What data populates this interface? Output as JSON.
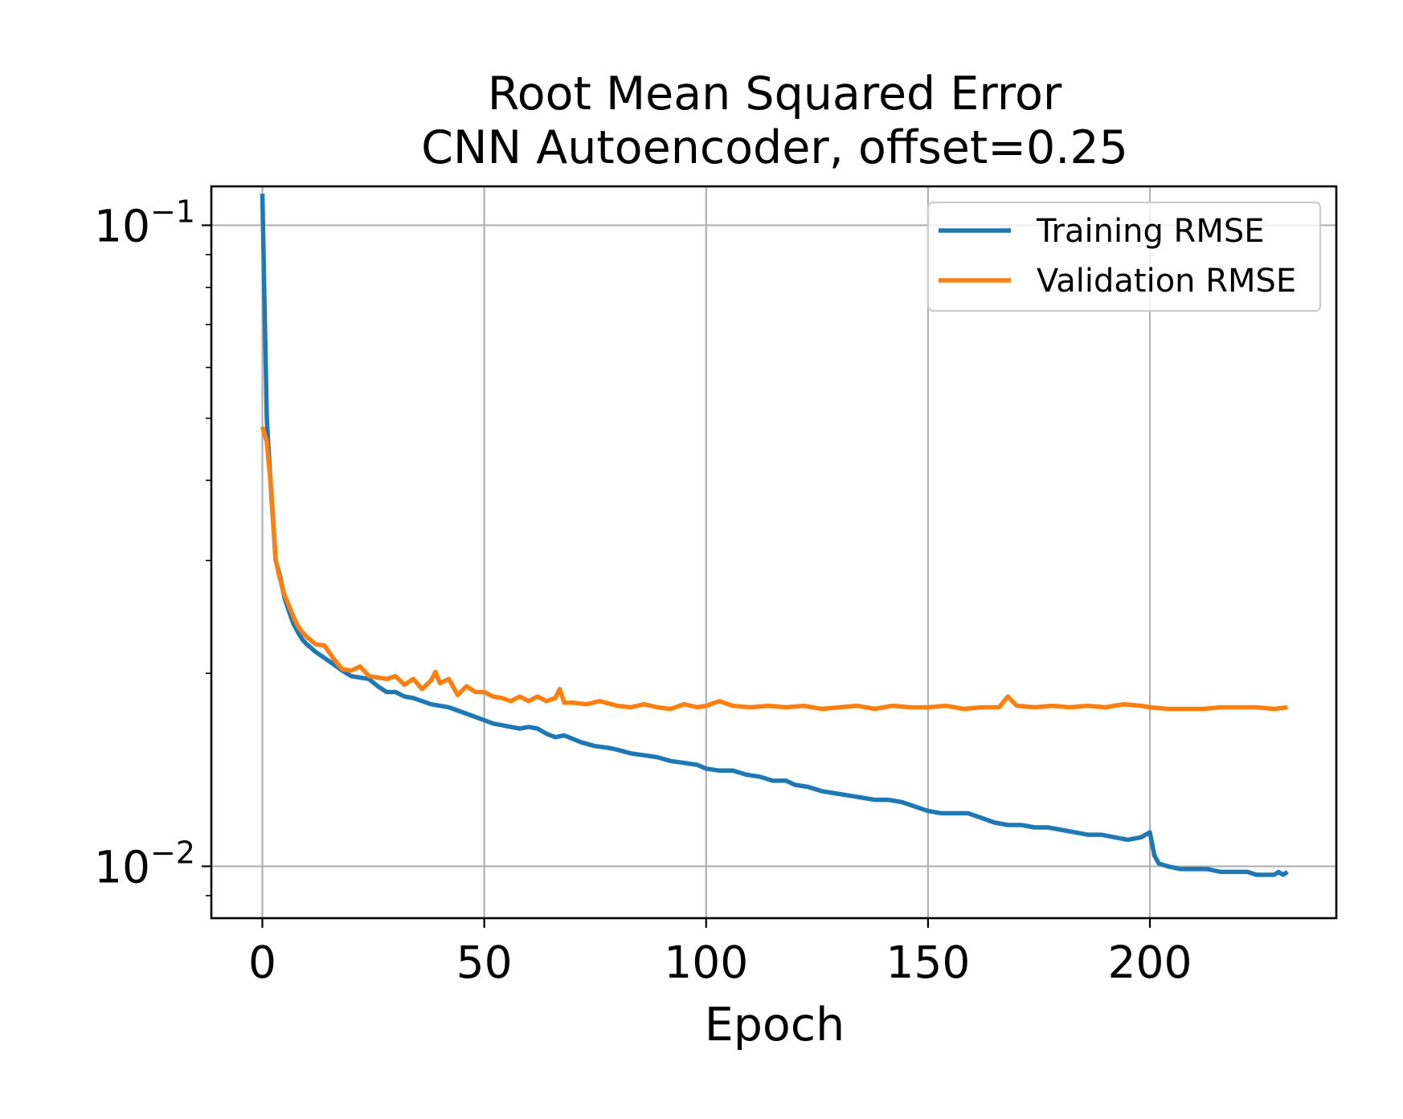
{
  "chart_data": {
    "type": "line",
    "title": "Root Mean Squared Error",
    "subtitle": "CNN Autoencoder, offset=0.25",
    "xlabel": "Epoch",
    "ylabel": "",
    "xlim": [
      -11.5,
      242
    ],
    "ylim": [
      0.0083,
      0.115
    ],
    "yscale": "log",
    "grid": true,
    "legend_position": "top-right",
    "x_ticks": [
      {
        "value": 0,
        "label": "0"
      },
      {
        "value": 50,
        "label": "50"
      },
      {
        "value": 100,
        "label": "100"
      },
      {
        "value": 150,
        "label": "150"
      },
      {
        "value": 200,
        "label": "200"
      }
    ],
    "y_ticks": [
      {
        "value": 0.1,
        "base": "10",
        "exp": "−1"
      },
      {
        "value": 0.01,
        "base": "10",
        "exp": "−2"
      }
    ],
    "series": [
      {
        "name": "Training RMSE",
        "color": "#1f77b4",
        "points": [
          [
            0,
            0.112
          ],
          [
            1,
            0.05
          ],
          [
            2,
            0.038
          ],
          [
            3,
            0.03
          ],
          [
            4,
            0.0283
          ],
          [
            5,
            0.0262
          ],
          [
            6,
            0.025
          ],
          [
            7,
            0.0239
          ],
          [
            8,
            0.0232
          ],
          [
            9,
            0.0226
          ],
          [
            10,
            0.0222
          ],
          [
            12,
            0.0216
          ],
          [
            15,
            0.0209
          ],
          [
            18,
            0.0202
          ],
          [
            20,
            0.0198
          ],
          [
            22,
            0.0197
          ],
          [
            24,
            0.0196
          ],
          [
            26,
            0.0191
          ],
          [
            28,
            0.0187
          ],
          [
            30,
            0.0187
          ],
          [
            32,
            0.0184
          ],
          [
            34,
            0.0183
          ],
          [
            36,
            0.0181
          ],
          [
            38,
            0.0179
          ],
          [
            40,
            0.0178
          ],
          [
            42,
            0.0177
          ],
          [
            44,
            0.0175
          ],
          [
            46,
            0.0173
          ],
          [
            48,
            0.0171
          ],
          [
            50,
            0.0169
          ],
          [
            52,
            0.0167
          ],
          [
            54,
            0.0166
          ],
          [
            56,
            0.0165
          ],
          [
            58,
            0.0164
          ],
          [
            60,
            0.0165
          ],
          [
            62,
            0.0164
          ],
          [
            64,
            0.0161
          ],
          [
            66,
            0.0159
          ],
          [
            68,
            0.016
          ],
          [
            70,
            0.0158
          ],
          [
            72,
            0.0156
          ],
          [
            75,
            0.0154
          ],
          [
            78,
            0.0153
          ],
          [
            80,
            0.0152
          ],
          [
            83,
            0.015
          ],
          [
            86,
            0.0149
          ],
          [
            89,
            0.0148
          ],
          [
            92,
            0.0146
          ],
          [
            95,
            0.0145
          ],
          [
            98,
            0.0144
          ],
          [
            100,
            0.0142
          ],
          [
            103,
            0.0141
          ],
          [
            106,
            0.0141
          ],
          [
            109,
            0.0139
          ],
          [
            112,
            0.0138
          ],
          [
            115,
            0.0136
          ],
          [
            118,
            0.0136
          ],
          [
            120,
            0.0134
          ],
          [
            123,
            0.0133
          ],
          [
            126,
            0.0131
          ],
          [
            129,
            0.013
          ],
          [
            132,
            0.0129
          ],
          [
            135,
            0.0128
          ],
          [
            138,
            0.0127
          ],
          [
            141,
            0.0127
          ],
          [
            144,
            0.0126
          ],
          [
            147,
            0.0124
          ],
          [
            150,
            0.0122
          ],
          [
            153,
            0.0121
          ],
          [
            156,
            0.0121
          ],
          [
            159,
            0.0121
          ],
          [
            162,
            0.0119
          ],
          [
            165,
            0.0117
          ],
          [
            168,
            0.0116
          ],
          [
            171,
            0.0116
          ],
          [
            174,
            0.0115
          ],
          [
            177,
            0.0115
          ],
          [
            180,
            0.0114
          ],
          [
            183,
            0.0113
          ],
          [
            186,
            0.0112
          ],
          [
            189,
            0.0112
          ],
          [
            192,
            0.0111
          ],
          [
            195,
            0.011
          ],
          [
            198,
            0.0111
          ],
          [
            200,
            0.0113
          ],
          [
            201,
            0.0104
          ],
          [
            202,
            0.0101
          ],
          [
            204,
            0.01
          ],
          [
            207,
            0.0099
          ],
          [
            210,
            0.0099
          ],
          [
            213,
            0.0099
          ],
          [
            216,
            0.0098
          ],
          [
            219,
            0.0098
          ],
          [
            222,
            0.0098
          ],
          [
            224,
            0.0097
          ],
          [
            226,
            0.0097
          ],
          [
            228,
            0.0097
          ],
          [
            229,
            0.0098
          ],
          [
            230,
            0.0097
          ],
          [
            231,
            0.0098
          ]
        ]
      },
      {
        "name": "Validation RMSE",
        "color": "#ff7f0e",
        "points": [
          [
            0,
            0.0485
          ],
          [
            1,
            0.046
          ],
          [
            2,
            0.0385
          ],
          [
            3,
            0.03
          ],
          [
            4,
            0.028
          ],
          [
            5,
            0.0265
          ],
          [
            6,
            0.0255
          ],
          [
            7,
            0.0245
          ],
          [
            8,
            0.0237
          ],
          [
            9,
            0.0232
          ],
          [
            10,
            0.0228
          ],
          [
            12,
            0.0222
          ],
          [
            14,
            0.0221
          ],
          [
            16,
            0.0211
          ],
          [
            18,
            0.0203
          ],
          [
            20,
            0.0202
          ],
          [
            22,
            0.0205
          ],
          [
            24,
            0.0198
          ],
          [
            26,
            0.0197
          ],
          [
            28,
            0.0196
          ],
          [
            30,
            0.0198
          ],
          [
            32,
            0.0192
          ],
          [
            34,
            0.0196
          ],
          [
            36,
            0.0189
          ],
          [
            38,
            0.0195
          ],
          [
            39,
            0.0201
          ],
          [
            40,
            0.0193
          ],
          [
            42,
            0.0196
          ],
          [
            44,
            0.0185
          ],
          [
            46,
            0.0191
          ],
          [
            48,
            0.0187
          ],
          [
            50,
            0.0187
          ],
          [
            52,
            0.0184
          ],
          [
            54,
            0.0183
          ],
          [
            56,
            0.0181
          ],
          [
            58,
            0.0184
          ],
          [
            60,
            0.0181
          ],
          [
            62,
            0.0184
          ],
          [
            64,
            0.0181
          ],
          [
            66,
            0.0183
          ],
          [
            67,
            0.0189
          ],
          [
            68,
            0.018
          ],
          [
            70,
            0.018
          ],
          [
            73,
            0.0179
          ],
          [
            76,
            0.0181
          ],
          [
            80,
            0.0178
          ],
          [
            83,
            0.0177
          ],
          [
            86,
            0.0179
          ],
          [
            89,
            0.0177
          ],
          [
            92,
            0.0176
          ],
          [
            95,
            0.0179
          ],
          [
            98,
            0.0177
          ],
          [
            100,
            0.0178
          ],
          [
            103,
            0.0181
          ],
          [
            106,
            0.0178
          ],
          [
            110,
            0.0177
          ],
          [
            114,
            0.0178
          ],
          [
            118,
            0.0177
          ],
          [
            122,
            0.0178
          ],
          [
            126,
            0.0176
          ],
          [
            130,
            0.0177
          ],
          [
            134,
            0.0178
          ],
          [
            138,
            0.0176
          ],
          [
            142,
            0.0178
          ],
          [
            146,
            0.0177
          ],
          [
            150,
            0.0177
          ],
          [
            154,
            0.0178
          ],
          [
            158,
            0.0176
          ],
          [
            162,
            0.0177
          ],
          [
            166,
            0.0177
          ],
          [
            168,
            0.0184
          ],
          [
            170,
            0.0178
          ],
          [
            174,
            0.0177
          ],
          [
            178,
            0.0178
          ],
          [
            182,
            0.0177
          ],
          [
            186,
            0.0178
          ],
          [
            190,
            0.0177
          ],
          [
            194,
            0.0179
          ],
          [
            198,
            0.0178
          ],
          [
            200,
            0.0177
          ],
          [
            204,
            0.0176
          ],
          [
            208,
            0.0176
          ],
          [
            212,
            0.0176
          ],
          [
            216,
            0.0177
          ],
          [
            220,
            0.0177
          ],
          [
            224,
            0.0177
          ],
          [
            228,
            0.0176
          ],
          [
            231,
            0.0177
          ]
        ]
      }
    ]
  }
}
